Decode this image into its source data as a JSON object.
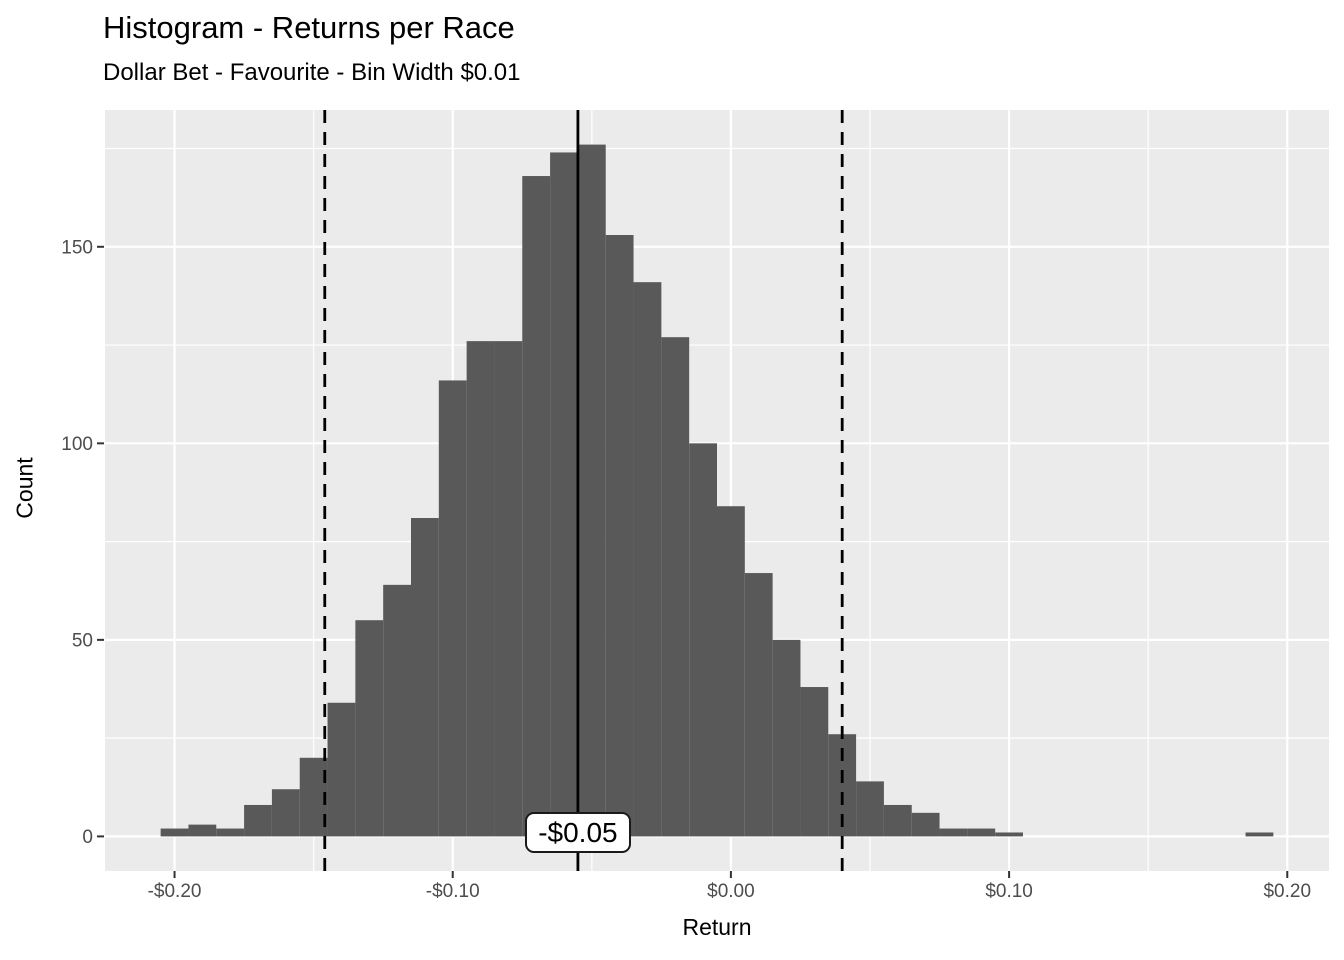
{
  "chart_data": {
    "type": "bar",
    "subtype": "histogram",
    "title": "Histogram - Returns per Race",
    "subtitle": "Dollar Bet - Favourite - Bin Width $0.01",
    "xlabel": "Return",
    "ylabel": "Count",
    "bin_width": 0.01,
    "x": [
      -0.2,
      -0.19,
      -0.18,
      -0.17,
      -0.16,
      -0.15,
      -0.14,
      -0.13,
      -0.12,
      -0.11,
      -0.1,
      -0.09,
      -0.08,
      -0.07,
      -0.06,
      -0.05,
      -0.04,
      -0.03,
      -0.02,
      -0.01,
      0.0,
      0.01,
      0.02,
      0.03,
      0.04,
      0.05,
      0.06,
      0.07,
      0.08,
      0.09,
      0.1,
      0.19
    ],
    "values": [
      2,
      3,
      2,
      8,
      12,
      20,
      34,
      55,
      64,
      81,
      116,
      126,
      126,
      168,
      174,
      176,
      153,
      141,
      127,
      100,
      84,
      67,
      50,
      38,
      26,
      14,
      8,
      6,
      2,
      2,
      1,
      1
    ],
    "x_ticks": [
      {
        "value": -0.2,
        "label": "-$0.20"
      },
      {
        "value": -0.1,
        "label": "-$0.10"
      },
      {
        "value": 0.0,
        "label": "$0.00"
      },
      {
        "value": 0.1,
        "label": "$0.10"
      },
      {
        "value": 0.2,
        "label": "$0.20"
      }
    ],
    "y_ticks": [
      {
        "value": 0,
        "label": "0"
      },
      {
        "value": 50,
        "label": "50"
      },
      {
        "value": 100,
        "label": "100"
      },
      {
        "value": 150,
        "label": "150"
      }
    ],
    "x_minor": [
      -0.15,
      -0.05,
      0.05,
      0.15
    ],
    "y_minor": [
      25,
      75,
      125,
      175
    ],
    "xlim": [
      -0.225,
      0.215
    ],
    "ylim": [
      -8.8,
      184.8
    ],
    "grid": "on",
    "legend": "none",
    "reference_lines": [
      {
        "value": -0.055,
        "style": "solid",
        "label": "-$0.05"
      },
      {
        "value": -0.146,
        "style": "dashed",
        "label": ""
      },
      {
        "value": 0.04,
        "style": "dashed",
        "label": ""
      }
    ],
    "colors": {
      "bar_fill": "#595959",
      "panel_background": "#ebebeb",
      "gridline": "#ffffff",
      "reference_line": "#000000",
      "tick_mark": "#333333",
      "tick_text": "#4d4d4d",
      "title_text": "#000000"
    }
  }
}
